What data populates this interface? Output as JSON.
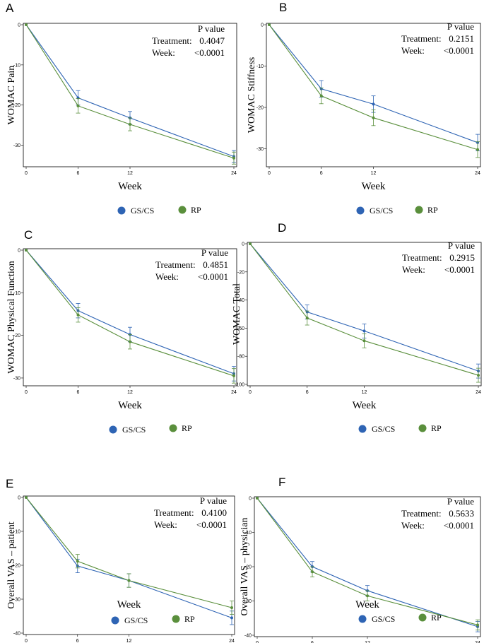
{
  "figure": {
    "pvalue_header": "P value",
    "treatment_label": "Treatment:",
    "week_label": "Week:",
    "xlabel": "Week",
    "series_names": [
      "GS/CS",
      "RP"
    ],
    "colors": {
      "gs_cs": "#2e64b4",
      "rp": "#5a8f3c"
    }
  },
  "chart_data": [
    {
      "panel": "A",
      "type": "line",
      "ylabel": "WOMAC Pain",
      "x": [
        0,
        6,
        12,
        24
      ],
      "xticks": [
        "0",
        "6",
        "12",
        "24"
      ],
      "ylim": [
        -35,
        0
      ],
      "yticks": [
        0,
        -10,
        -20,
        -30
      ],
      "ytick_labels": [
        "0",
        "-10",
        "-20",
        "-30"
      ],
      "treatment_p": "0.4047",
      "week_p": "<0.0001",
      "series": [
        {
          "name": "GS/CS",
          "values": [
            0,
            -18.2,
            -23.2,
            -32.8
          ],
          "err": [
            0,
            1.8,
            1.6,
            1.5
          ]
        },
        {
          "name": "RP",
          "values": [
            0,
            -20.2,
            -24.8,
            -33.2
          ],
          "err": [
            0,
            1.8,
            1.6,
            1.5
          ]
        }
      ]
    },
    {
      "panel": "B",
      "type": "line",
      "ylabel": "WOMAC Stiffness",
      "x": [
        0,
        6,
        12,
        24
      ],
      "xticks": [
        "0",
        "6",
        "12",
        "24"
      ],
      "ylim": [
        -34,
        0
      ],
      "yticks": [
        0,
        -10,
        -20,
        -30
      ],
      "ytick_labels": [
        "0",
        "-10",
        "-20",
        "-30"
      ],
      "treatment_p": "0.2151",
      "week_p": "<0.0001",
      "series": [
        {
          "name": "GS/CS",
          "values": [
            0,
            -15.5,
            -19.2,
            -28.5
          ],
          "err": [
            0,
            2.0,
            2.0,
            2.0
          ]
        },
        {
          "name": "RP",
          "values": [
            0,
            -17.2,
            -22.5,
            -30.2
          ],
          "err": [
            0,
            1.9,
            1.9,
            1.9
          ]
        }
      ]
    },
    {
      "panel": "C",
      "type": "line",
      "ylabel": "WOMAC Physical Function",
      "x": [
        0,
        6,
        12,
        24
      ],
      "xticks": [
        "0",
        "6",
        "12",
        "24"
      ],
      "ylim": [
        -31.5,
        0
      ],
      "yticks": [
        0,
        -10,
        -20,
        -30
      ],
      "ytick_labels": [
        "0",
        "-10",
        "-20",
        "-30"
      ],
      "treatment_p": "0.4851",
      "week_p": "<0.0001",
      "series": [
        {
          "name": "GS/CS",
          "values": [
            0,
            -14.2,
            -19.8,
            -29.0
          ],
          "err": [
            0,
            1.7,
            1.7,
            1.7
          ]
        },
        {
          "name": "RP",
          "values": [
            0,
            -15.2,
            -21.5,
            -29.5
          ],
          "err": [
            0,
            1.7,
            1.7,
            1.7
          ]
        }
      ]
    },
    {
      "panel": "D",
      "type": "line",
      "ylabel": "WOMAC Total",
      "x": [
        0,
        6,
        12,
        24
      ],
      "xticks": [
        "0",
        "6",
        "12",
        "24"
      ],
      "ylim": [
        -100,
        0
      ],
      "yticks": [
        0,
        -20,
        -40,
        -60,
        -80,
        -100
      ],
      "ytick_labels": [
        "0",
        "-20",
        "-40",
        "-60",
        "-80",
        "-100"
      ],
      "treatment_p": "0.2915",
      "week_p": "<0.0001",
      "series": [
        {
          "name": "GS/CS",
          "values": [
            0,
            -48.5,
            -62.0,
            -90.5
          ],
          "err": [
            0,
            5.0,
            5.0,
            5.0
          ]
        },
        {
          "name": "RP",
          "values": [
            0,
            -52.8,
            -69.0,
            -93.5
          ],
          "err": [
            0,
            5.0,
            5.0,
            5.0
          ]
        }
      ]
    },
    {
      "panel": "E",
      "type": "line",
      "ylabel": "Overall VAS – patient",
      "x": [
        0,
        6,
        12,
        24
      ],
      "xticks": [
        "0",
        "6",
        "12",
        "24"
      ],
      "ylim": [
        -40,
        0
      ],
      "yticks": [
        0,
        -10,
        -20,
        -30,
        -40
      ],
      "ytick_labels": [
        "0",
        "-10",
        "-20",
        "-30",
        "-40"
      ],
      "treatment_p": "0.4100",
      "week_p": "<0.0001",
      "series": [
        {
          "name": "GS/CS",
          "values": [
            0,
            -20.2,
            -24.5,
            -35.5
          ],
          "err": [
            0,
            2.0,
            2.0,
            2.0
          ]
        },
        {
          "name": "RP",
          "values": [
            0,
            -18.8,
            -24.5,
            -32.5
          ],
          "err": [
            0,
            2.0,
            2.0,
            2.0
          ]
        }
      ]
    },
    {
      "panel": "F",
      "type": "line",
      "ylabel": "Overall VAS – physician",
      "x": [
        0,
        6,
        12,
        24
      ],
      "xticks": [
        "0",
        "6",
        "12",
        "24"
      ],
      "ylim": [
        -40,
        0
      ],
      "yticks": [
        0,
        -10,
        -20,
        -30,
        -40
      ],
      "ytick_labels": [
        "0",
        "-10",
        "-20",
        "-30",
        "-40"
      ],
      "treatment_p": "0.5633",
      "week_p": "<0.0001",
      "series": [
        {
          "name": "GS/CS",
          "values": [
            0,
            -20.0,
            -27.0,
            -37.5
          ],
          "err": [
            0,
            1.5,
            1.5,
            1.5
          ]
        },
        {
          "name": "RP",
          "values": [
            0,
            -21.5,
            -28.5,
            -37.0
          ],
          "err": [
            0,
            1.5,
            1.5,
            1.5
          ]
        }
      ]
    }
  ]
}
